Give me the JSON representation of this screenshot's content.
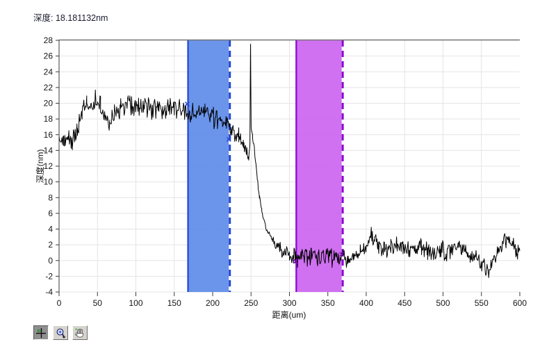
{
  "header": {
    "readout": "深度: 18.181132nm"
  },
  "colors": {
    "trace": "#000000",
    "grid": "#e4e4e4",
    "plot_top_border": "#737373",
    "axis_line": "#3a3a3a",
    "blue_band_fill": "#5f8dea",
    "blue_band_edge": "#2446cf",
    "magenta_band_fill": "#cb66f0",
    "magenta_band_edge": "#8b06cf",
    "readout_text": "#1b1b2f",
    "green_dot": "#3ec23e"
  },
  "toolbar": {
    "buttons": [
      {
        "name": "cursor-tool",
        "icon": "crosshair-icon",
        "pressed": true
      },
      {
        "name": "zoom-tool",
        "icon": "magnifier-icon",
        "pressed": false
      },
      {
        "name": "pan-tool",
        "icon": "hand-icon",
        "pressed": false
      }
    ]
  },
  "chart_data": {
    "type": "line",
    "title": "",
    "xlabel": "距离(um)",
    "ylabel": "深度(nm)",
    "xlim": [
      0,
      600
    ],
    "ylim": [
      -4,
      28
    ],
    "xticks": [
      0,
      50,
      100,
      150,
      200,
      250,
      300,
      350,
      400,
      450,
      500,
      550,
      600
    ],
    "yticks": [
      28,
      26,
      24,
      22,
      20,
      18,
      16,
      14,
      12,
      10,
      8,
      6,
      4,
      2,
      0,
      -2,
      -4
    ],
    "grid": true,
    "legend": "none",
    "series": [
      {
        "name": "depth-profile",
        "color": "#000000",
        "description": "noisy step-height profile: plateau ~19nm for x<245, sharp spike to 27.5 at x=249, step down to ~0.4nm after x=290",
        "envelope_points_x_y_noise": [
          [
            0,
            15.2,
            1.0
          ],
          [
            6,
            15.0,
            1.0
          ],
          [
            12,
            15.8,
            1.0
          ],
          [
            18,
            15.3,
            1.0
          ],
          [
            24,
            16.6,
            1.1
          ],
          [
            30,
            18.8,
            1.2
          ],
          [
            36,
            20.0,
            1.2
          ],
          [
            42,
            19.6,
            1.2
          ],
          [
            48,
            20.2,
            1.2
          ],
          [
            54,
            19.9,
            1.2
          ],
          [
            60,
            18.4,
            1.1
          ],
          [
            66,
            17.3,
            1.0
          ],
          [
            72,
            18.6,
            1.1
          ],
          [
            80,
            19.5,
            1.2
          ],
          [
            90,
            19.9,
            1.2
          ],
          [
            100,
            19.4,
            1.2
          ],
          [
            110,
            19.9,
            1.2
          ],
          [
            120,
            19.2,
            1.2
          ],
          [
            130,
            19.7,
            1.2
          ],
          [
            140,
            18.9,
            1.2
          ],
          [
            150,
            19.5,
            1.2
          ],
          [
            160,
            19.0,
            1.1
          ],
          [
            170,
            18.8,
            1.1
          ],
          [
            180,
            18.5,
            1.1
          ],
          [
            190,
            18.9,
            1.1
          ],
          [
            200,
            18.2,
            1.1
          ],
          [
            210,
            17.7,
            1.1
          ],
          [
            218,
            17.4,
            1.0
          ],
          [
            226,
            16.8,
            1.0
          ],
          [
            234,
            15.8,
            1.0
          ],
          [
            240,
            14.7,
            0.9
          ],
          [
            244,
            13.8,
            0.8
          ],
          [
            247,
            12.9,
            0.5
          ],
          [
            248.5,
            14.6,
            0.3
          ],
          [
            249.3,
            27.5,
            0.05
          ],
          [
            250.1,
            16.9,
            0.15
          ],
          [
            252,
            15.9,
            0.5
          ],
          [
            255,
            13.4,
            0.5
          ],
          [
            258,
            10.6,
            0.5
          ],
          [
            261,
            8.2,
            0.5
          ],
          [
            264,
            6.3,
            0.5
          ],
          [
            268,
            4.8,
            0.5
          ],
          [
            272,
            3.7,
            0.6
          ],
          [
            278,
            2.7,
            0.7
          ],
          [
            285,
            1.7,
            0.8
          ],
          [
            292,
            1.2,
            0.9
          ],
          [
            300,
            0.8,
            1.0
          ],
          [
            308,
            0.4,
            1.1
          ],
          [
            318,
            0.5,
            1.1
          ],
          [
            328,
            0.6,
            1.1
          ],
          [
            338,
            0.3,
            1.1
          ],
          [
            348,
            0.5,
            1.1
          ],
          [
            358,
            0.2,
            1.1
          ],
          [
            368,
            0.5,
            1.1
          ],
          [
            376,
            -0.1,
            0.9
          ],
          [
            384,
            0.4,
            1.0
          ],
          [
            392,
            1.1,
            1.0
          ],
          [
            400,
            1.9,
            1.0
          ],
          [
            407,
            3.1,
            1.0
          ],
          [
            411,
            3.3,
            1.0
          ],
          [
            416,
            2.1,
            1.1
          ],
          [
            424,
            1.2,
            1.1
          ],
          [
            432,
            1.6,
            1.1
          ],
          [
            440,
            2.0,
            1.1
          ],
          [
            448,
            2.2,
            1.1
          ],
          [
            456,
            1.4,
            1.1
          ],
          [
            464,
            1.1,
            1.1
          ],
          [
            472,
            1.8,
            1.1
          ],
          [
            480,
            1.0,
            1.1
          ],
          [
            488,
            1.3,
            1.1
          ],
          [
            496,
            1.6,
            1.1
          ],
          [
            504,
            1.0,
            1.1
          ],
          [
            512,
            1.4,
            1.1
          ],
          [
            520,
            1.8,
            1.1
          ],
          [
            528,
            1.0,
            1.1
          ],
          [
            536,
            0.7,
            1.0
          ],
          [
            544,
            0.1,
            1.0
          ],
          [
            552,
            -0.7,
            1.0
          ],
          [
            558,
            -1.3,
            0.9
          ],
          [
            562,
            -0.8,
            1.0
          ],
          [
            568,
            0.3,
            1.0
          ],
          [
            575,
            1.6,
            1.0
          ],
          [
            581,
            2.9,
            1.0
          ],
          [
            585,
            2.5,
            1.0
          ],
          [
            590,
            1.8,
            1.0
          ],
          [
            596,
            1.3,
            1.0
          ],
          [
            600,
            1.0,
            0.8
          ]
        ]
      }
    ],
    "regions": [
      {
        "name": "blue-reference-region",
        "x0": 167,
        "x1": 221,
        "fill": "#5f8dea",
        "edge": "#2446cf",
        "left_edge": "solid",
        "right_edge": "dashed"
      },
      {
        "name": "magenta-measure-region",
        "x0": 308,
        "x1": 368,
        "fill": "#cb66f0",
        "edge": "#8b06cf",
        "left_edge": "solid",
        "right_edge": "dashed"
      }
    ],
    "cursors": [
      {
        "name": "cursor-1",
        "x": 167,
        "y": 19.9,
        "color": "#2446cf"
      },
      {
        "name": "cursor-2",
        "x": 221,
        "y": 15.4,
        "color": "#2446cf"
      },
      {
        "name": "cursor-3",
        "x": 308,
        "y": -0.1,
        "color": "#8b06cf"
      },
      {
        "name": "cursor-4",
        "x": 368,
        "y": 0.8,
        "color": "#8b06cf"
      }
    ]
  }
}
